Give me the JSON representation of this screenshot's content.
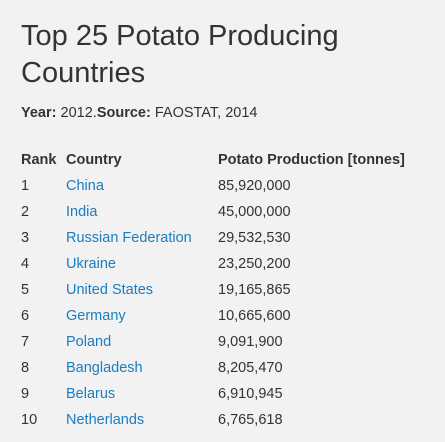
{
  "title": "Top 25 Potato Producing Countries",
  "meta": {
    "year_label": "Year:",
    "year_value": " 2012.",
    "source_label": "Source:",
    "source_value": " FAOSTAT, 2014"
  },
  "table": {
    "headers": [
      "Rank",
      "Country",
      "Potato Production [tonnes]"
    ],
    "rows": [
      {
        "rank": "1",
        "country": "China",
        "production": "85,920,000"
      },
      {
        "rank": "2",
        "country": "India",
        "production": "45,000,000"
      },
      {
        "rank": "3",
        "country": "Russian Federation",
        "production": "29,532,530"
      },
      {
        "rank": "4",
        "country": "Ukraine",
        "production": "23,250,200"
      },
      {
        "rank": "5",
        "country": "United States",
        "production": "19,165,865"
      },
      {
        "rank": "6",
        "country": "Germany",
        "production": "10,665,600"
      },
      {
        "rank": "7",
        "country": "Poland",
        "production": "9,091,900"
      },
      {
        "rank": "8",
        "country": "Bangladesh",
        "production": "8,205,470"
      },
      {
        "rank": "9",
        "country": "Belarus",
        "production": "6,910,945"
      },
      {
        "rank": "10",
        "country": "Netherlands",
        "production": "6,765,618"
      }
    ]
  },
  "colors": {
    "link": "#1a7dc1",
    "text": "#333333",
    "background": "#f2f2f2"
  }
}
